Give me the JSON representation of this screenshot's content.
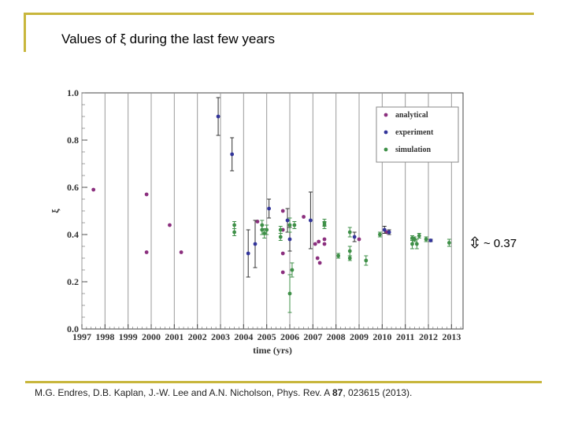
{
  "slide": {
    "title": "Values of ξ during the last few years",
    "citation_prefix": "M.G. Endres, D.B. Kaplan, J.-W. Lee and A.N. Nicholson, Phys. Rev. A ",
    "citation_volume": "87",
    "citation_suffix": ", 023615 (2013).",
    "approx_label": "~ 0.37",
    "arrow_icon": "updown-arrow-icon"
  },
  "chart_data": {
    "type": "scatter",
    "title": "",
    "xlabel": "time (yrs)",
    "ylabel": "ξ",
    "xlim": [
      1997,
      2013.5
    ],
    "ylim": [
      0,
      1.0
    ],
    "grid": "vertical",
    "legend_position": "top-right",
    "x_ticks": [
      "1997",
      "1998",
      "1999",
      "2000",
      "2001",
      "2002",
      "2003",
      "2004",
      "2005",
      "2006",
      "2007",
      "2008",
      "2009",
      "2010",
      "2011",
      "2012",
      "2013"
    ],
    "y_ticks": [
      "0.0",
      "0.2",
      "0.4",
      "0.6",
      "0.8",
      "1.0"
    ],
    "colors": {
      "analytical": "#8b2f7e",
      "experiment": "#33359a",
      "simulation": "#3f9048"
    },
    "series": [
      {
        "name": "analytical",
        "points": [
          {
            "x": 1997.5,
            "y": 0.59
          },
          {
            "x": 1999.8,
            "y": 0.57
          },
          {
            "x": 1999.8,
            "y": 0.325
          },
          {
            "x": 2000.8,
            "y": 0.44
          },
          {
            "x": 2001.3,
            "y": 0.325
          },
          {
            "x": 2004.6,
            "y": 0.455
          },
          {
            "x": 2005.7,
            "y": 0.5
          },
          {
            "x": 2005.7,
            "y": 0.42
          },
          {
            "x": 2005.7,
            "y": 0.32
          },
          {
            "x": 2005.7,
            "y": 0.24
          },
          {
            "x": 2006.6,
            "y": 0.475
          },
          {
            "x": 2007.1,
            "y": 0.36
          },
          {
            "x": 2007.2,
            "y": 0.3
          },
          {
            "x": 2007.25,
            "y": 0.37
          },
          {
            "x": 2007.3,
            "y": 0.28
          },
          {
            "x": 2007.5,
            "y": 0.38
          },
          {
            "x": 2007.5,
            "y": 0.36
          },
          {
            "x": 2009.0,
            "y": 0.38
          },
          {
            "x": 2010.2,
            "y": 0.41
          }
        ]
      },
      {
        "name": "experiment",
        "points": [
          {
            "x": 2002.9,
            "y": 0.9,
            "err": 0.08
          },
          {
            "x": 2003.5,
            "y": 0.74,
            "err": 0.07
          },
          {
            "x": 2004.2,
            "y": 0.32,
            "err": 0.1
          },
          {
            "x": 2004.5,
            "y": 0.36,
            "err": 0.1
          },
          {
            "x": 2005.1,
            "y": 0.51,
            "err": 0.04
          },
          {
            "x": 2005.9,
            "y": 0.46,
            "err": 0.05
          },
          {
            "x": 2006.0,
            "y": 0.38,
            "err": 0.05
          },
          {
            "x": 2006.9,
            "y": 0.46,
            "err": 0.12
          },
          {
            "x": 2008.8,
            "y": 0.39,
            "err": 0.02
          },
          {
            "x": 2010.1,
            "y": 0.42,
            "err": 0.015
          },
          {
            "x": 2010.3,
            "y": 0.41,
            "err": 0.01
          },
          {
            "x": 2012.1,
            "y": 0.375,
            "err": 0.005
          }
        ]
      },
      {
        "name": "simulation",
        "points": [
          {
            "x": 2003.6,
            "y": 0.44,
            "err": 0.015
          },
          {
            "x": 2003.6,
            "y": 0.41,
            "err": 0.015
          },
          {
            "x": 2004.8,
            "y": 0.44,
            "err": 0.02
          },
          {
            "x": 2004.8,
            "y": 0.42,
            "err": 0.02
          },
          {
            "x": 2004.9,
            "y": 0.405,
            "err": 0.02
          },
          {
            "x": 2005.0,
            "y": 0.42,
            "err": 0.02
          },
          {
            "x": 2005.6,
            "y": 0.42,
            "err": 0.015
          },
          {
            "x": 2005.6,
            "y": 0.39,
            "err": 0.015
          },
          {
            "x": 2006.0,
            "y": 0.44,
            "err": 0.03
          },
          {
            "x": 2006.1,
            "y": 0.25,
            "err": 0.03
          },
          {
            "x": 2006.0,
            "y": 0.15,
            "err": 0.08
          },
          {
            "x": 2006.2,
            "y": 0.44,
            "err": 0.015
          },
          {
            "x": 2007.5,
            "y": 0.45,
            "err": 0.015
          },
          {
            "x": 2007.5,
            "y": 0.44,
            "err": 0.015
          },
          {
            "x": 2008.1,
            "y": 0.31,
            "err": 0.01
          },
          {
            "x": 2008.6,
            "y": 0.41,
            "err": 0.02
          },
          {
            "x": 2008.6,
            "y": 0.33,
            "err": 0.02
          },
          {
            "x": 2008.6,
            "y": 0.3,
            "err": 0.01
          },
          {
            "x": 2009.3,
            "y": 0.29,
            "err": 0.02
          },
          {
            "x": 2009.9,
            "y": 0.4,
            "err": 0.01
          },
          {
            "x": 2011.3,
            "y": 0.385,
            "err": 0.01
          },
          {
            "x": 2011.3,
            "y": 0.36,
            "err": 0.02
          },
          {
            "x": 2011.4,
            "y": 0.38,
            "err": 0.01
          },
          {
            "x": 2011.5,
            "y": 0.36,
            "err": 0.02
          },
          {
            "x": 2011.6,
            "y": 0.395,
            "err": 0.01
          },
          {
            "x": 2011.9,
            "y": 0.38,
            "err": 0.01
          },
          {
            "x": 2012.9,
            "y": 0.365,
            "err": 0.015
          }
        ]
      }
    ]
  }
}
